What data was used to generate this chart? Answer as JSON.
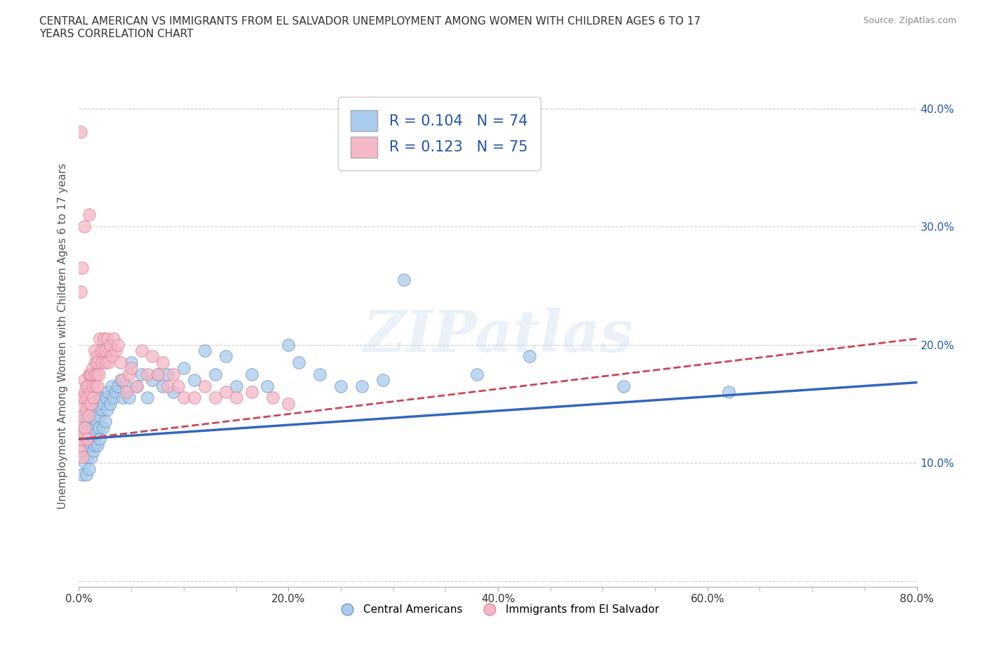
{
  "title": "CENTRAL AMERICAN VS IMMIGRANTS FROM EL SALVADOR UNEMPLOYMENT AMONG WOMEN WITH CHILDREN AGES 6 TO 17\nYEARS CORRELATION CHART",
  "source": "Source: ZipAtlas.com",
  "ylabel": "Unemployment Among Women with Children Ages 6 to 17 years",
  "xlim": [
    0.0,
    0.8
  ],
  "ylim": [
    -0.005,
    0.42
  ],
  "yticks": [
    0.0,
    0.1,
    0.2,
    0.3,
    0.4
  ],
  "ytick_labels": [
    "",
    "10.0%",
    "20.0%",
    "30.0%",
    "40.0%"
  ],
  "xtick_positions": [
    0.0,
    0.2,
    0.4,
    0.6,
    0.8
  ],
  "xtick_labels": [
    "0.0%",
    "20.0%",
    "40.0%",
    "60.0%",
    "80.0%"
  ],
  "watermark": "ZIPatlas",
  "legend_r1_label": "R = 0.104",
  "legend_r1_n": "N = 74",
  "legend_r2_label": "R = 0.123",
  "legend_r2_n": "N = 75",
  "blue_color": "#aaccee",
  "pink_color": "#f4b8c8",
  "blue_edge_color": "#7799bb",
  "pink_edge_color": "#dd8899",
  "blue_line_color": "#3366bb",
  "pink_line_color": "#cc4455",
  "grid_color": "#cccccc",
  "bg_color": "#ffffff",
  "blue_scatter_x": [
    0.003,
    0.003,
    0.004,
    0.005,
    0.006,
    0.006,
    0.007,
    0.007,
    0.008,
    0.008,
    0.009,
    0.01,
    0.01,
    0.011,
    0.012,
    0.012,
    0.013,
    0.013,
    0.014,
    0.014,
    0.015,
    0.015,
    0.016,
    0.017,
    0.018,
    0.018,
    0.019,
    0.02,
    0.02,
    0.021,
    0.022,
    0.023,
    0.024,
    0.025,
    0.026,
    0.027,
    0.028,
    0.03,
    0.031,
    0.033,
    0.035,
    0.037,
    0.04,
    0.042,
    0.045,
    0.048,
    0.05,
    0.055,
    0.06,
    0.065,
    0.07,
    0.075,
    0.08,
    0.085,
    0.09,
    0.1,
    0.11,
    0.12,
    0.13,
    0.14,
    0.15,
    0.165,
    0.18,
    0.2,
    0.21,
    0.23,
    0.25,
    0.27,
    0.29,
    0.31,
    0.38,
    0.43,
    0.52,
    0.62
  ],
  "blue_scatter_y": [
    0.125,
    0.09,
    0.11,
    0.13,
    0.1,
    0.14,
    0.09,
    0.12,
    0.105,
    0.135,
    0.115,
    0.125,
    0.095,
    0.115,
    0.13,
    0.105,
    0.12,
    0.145,
    0.11,
    0.13,
    0.14,
    0.115,
    0.125,
    0.135,
    0.115,
    0.155,
    0.13,
    0.14,
    0.12,
    0.155,
    0.145,
    0.13,
    0.15,
    0.135,
    0.155,
    0.145,
    0.16,
    0.15,
    0.165,
    0.155,
    0.16,
    0.165,
    0.17,
    0.155,
    0.165,
    0.155,
    0.185,
    0.165,
    0.175,
    0.155,
    0.17,
    0.175,
    0.165,
    0.175,
    0.16,
    0.18,
    0.17,
    0.195,
    0.175,
    0.19,
    0.165,
    0.175,
    0.165,
    0.2,
    0.185,
    0.175,
    0.165,
    0.165,
    0.17,
    0.255,
    0.175,
    0.19,
    0.165,
    0.16
  ],
  "pink_scatter_x": [
    0.001,
    0.001,
    0.002,
    0.002,
    0.003,
    0.003,
    0.004,
    0.004,
    0.005,
    0.005,
    0.005,
    0.006,
    0.006,
    0.007,
    0.007,
    0.008,
    0.008,
    0.009,
    0.009,
    0.01,
    0.01,
    0.011,
    0.011,
    0.012,
    0.012,
    0.013,
    0.013,
    0.014,
    0.015,
    0.015,
    0.016,
    0.016,
    0.017,
    0.017,
    0.018,
    0.018,
    0.019,
    0.02,
    0.021,
    0.022,
    0.023,
    0.024,
    0.025,
    0.026,
    0.027,
    0.028,
    0.029,
    0.03,
    0.032,
    0.033,
    0.035,
    0.037,
    0.04,
    0.042,
    0.045,
    0.048,
    0.05,
    0.055,
    0.06,
    0.065,
    0.07,
    0.075,
    0.08,
    0.085,
    0.09,
    0.095,
    0.1,
    0.11,
    0.12,
    0.13,
    0.14,
    0.15,
    0.165,
    0.185,
    0.2
  ],
  "pink_scatter_y": [
    0.115,
    0.13,
    0.11,
    0.145,
    0.12,
    0.155,
    0.105,
    0.14,
    0.125,
    0.155,
    0.17,
    0.13,
    0.16,
    0.145,
    0.165,
    0.12,
    0.155,
    0.14,
    0.165,
    0.15,
    0.175,
    0.16,
    0.175,
    0.15,
    0.175,
    0.165,
    0.18,
    0.155,
    0.175,
    0.195,
    0.165,
    0.185,
    0.175,
    0.19,
    0.165,
    0.185,
    0.175,
    0.205,
    0.195,
    0.185,
    0.195,
    0.205,
    0.185,
    0.195,
    0.205,
    0.185,
    0.195,
    0.2,
    0.19,
    0.205,
    0.195,
    0.2,
    0.185,
    0.17,
    0.16,
    0.175,
    0.18,
    0.165,
    0.195,
    0.175,
    0.19,
    0.175,
    0.185,
    0.165,
    0.175,
    0.165,
    0.155,
    0.155,
    0.165,
    0.155,
    0.16,
    0.155,
    0.16,
    0.155,
    0.15
  ],
  "pink_extra_high": [
    [
      0.002,
      0.38
    ],
    [
      0.005,
      0.3
    ],
    [
      0.01,
      0.31
    ],
    [
      0.003,
      0.265
    ],
    [
      0.002,
      0.245
    ]
  ],
  "blue_trend_x": [
    0.0,
    0.8
  ],
  "blue_trend_y": [
    0.12,
    0.168
  ],
  "pink_trend_x": [
    0.0,
    0.8
  ],
  "pink_trend_y": [
    0.12,
    0.205
  ]
}
